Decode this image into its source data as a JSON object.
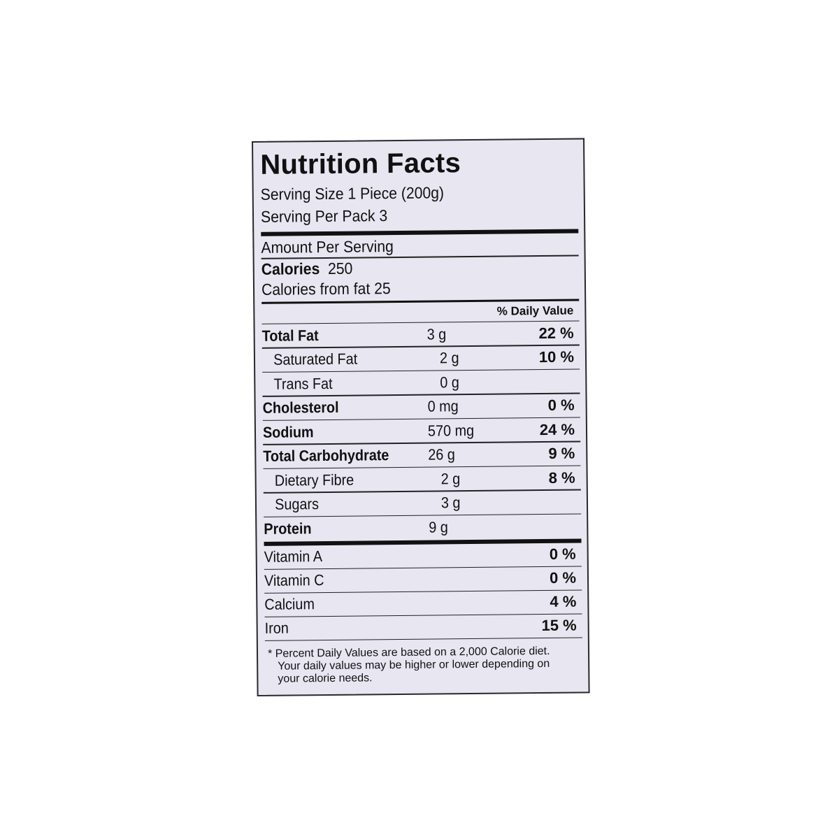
{
  "label": {
    "title": "Nutrition Facts",
    "serving_size": "Serving Size 1 Piece (200g)",
    "servings_per_pack": "Serving Per Pack 3",
    "amount_per_serving": "Amount Per Serving",
    "calories_label": "Calories",
    "calories_value": "250",
    "calories_from_fat": "Calories from fat  25",
    "daily_value_header": "% Daily Value",
    "nutrients": [
      {
        "name": "Total Fat",
        "amount": "3 g",
        "percent": "22 %"
      },
      {
        "name": "Saturated Fat",
        "amount": "2 g",
        "percent": "10 %"
      },
      {
        "name": "Trans Fat",
        "amount": "0 g",
        "percent": ""
      },
      {
        "name": "Cholesterol",
        "amount": "0 mg",
        "percent": "0 %"
      },
      {
        "name": "Sodium",
        "amount": "570 mg",
        "percent": "24 %"
      },
      {
        "name": "Total Carbohydrate",
        "amount": "26 g",
        "percent": "9 %"
      },
      {
        "name": "Dietary Fibre",
        "amount": "2 g",
        "percent": "8 %"
      },
      {
        "name": "Sugars",
        "amount": "3 g",
        "percent": ""
      },
      {
        "name": "Protein",
        "amount": "9 g",
        "percent": ""
      }
    ],
    "vitamins": [
      {
        "name": "Vitamin A",
        "percent": "0 %"
      },
      {
        "name": "Vitamin C",
        "percent": "0 %"
      },
      {
        "name": "Calcium",
        "percent": "4 %"
      },
      {
        "name": "Iron",
        "percent": "15 %"
      }
    ],
    "footnote_line1": "* Percent Daily Values are based on a 2,000 Calorie diet.",
    "footnote_line2": "Your daily values may be higher or lower depending on",
    "footnote_line3": "your calorie needs.",
    "background_color": "#e7e6f1"
  }
}
